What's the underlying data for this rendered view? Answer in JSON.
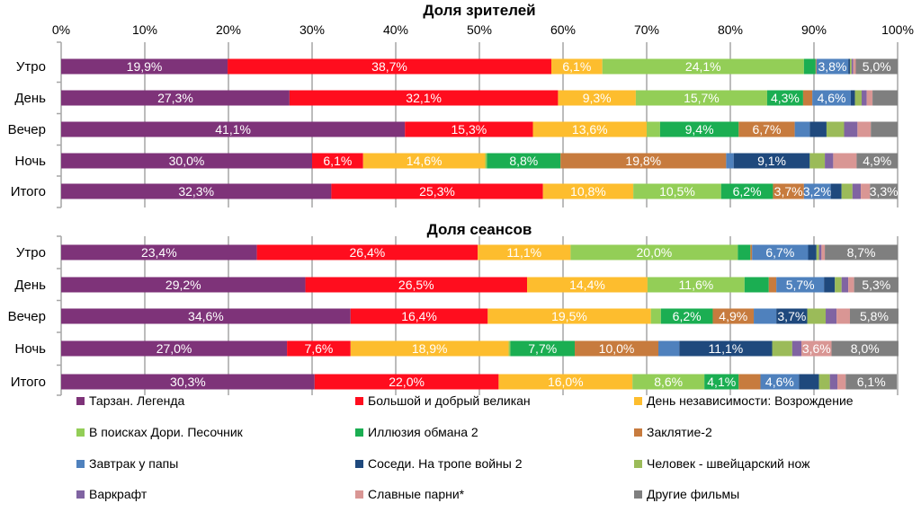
{
  "chart_data": [
    {
      "type": "bar",
      "orientation": "horizontal",
      "stacked": "percent",
      "title": "Доля зрителей",
      "categories": [
        "Утро",
        "День",
        "Вечер",
        "Ночь",
        "Итого"
      ],
      "xlim": [
        0,
        100
      ],
      "xticks": [
        "0%",
        "10%",
        "20%",
        "30%",
        "40%",
        "50%",
        "60%",
        "70%",
        "80%",
        "90%",
        "100%"
      ],
      "grid": true,
      "legend": "bottom",
      "series": [
        {
          "name": "Тарзан. Легенда",
          "values": [
            19.9,
            27.3,
            41.1,
            30.0,
            32.3
          ],
          "labeled": [
            true,
            true,
            true,
            true,
            true
          ]
        },
        {
          "name": "Большой и добрый великан",
          "values": [
            38.7,
            32.1,
            15.3,
            6.1,
            25.3
          ],
          "labeled": [
            true,
            true,
            true,
            true,
            true
          ]
        },
        {
          "name": "День независимости: Возрождение",
          "values": [
            6.1,
            9.3,
            13.6,
            14.6,
            10.8
          ],
          "labeled": [
            true,
            true,
            true,
            true,
            true
          ]
        },
        {
          "name": "В поисках Дори. Песочник",
          "values": [
            24.1,
            15.7,
            1.6,
            0.2,
            10.5
          ],
          "labeled": [
            true,
            true,
            false,
            false,
            true
          ]
        },
        {
          "name": "Иллюзия обмана 2",
          "values": [
            1.4,
            4.3,
            9.4,
            8.8,
            6.2
          ],
          "labeled": [
            false,
            true,
            true,
            true,
            true
          ]
        },
        {
          "name": "Заклятие-2",
          "values": [
            0.1,
            1.1,
            6.7,
            19.8,
            3.7
          ],
          "labeled": [
            false,
            false,
            true,
            true,
            true
          ]
        },
        {
          "name": "Завтрак у папы",
          "values": [
            3.8,
            4.6,
            1.8,
            0.9,
            3.2
          ],
          "labeled": [
            true,
            true,
            false,
            false,
            true
          ]
        },
        {
          "name": "Соседи. На тропе войны 2",
          "values": [
            0.2,
            0.5,
            2.0,
            9.1,
            1.3
          ],
          "labeled": [
            false,
            false,
            false,
            true,
            false
          ]
        },
        {
          "name": "Человек - швейцарский нож",
          "values": [
            0.2,
            0.8,
            2.1,
            1.8,
            1.3
          ],
          "labeled": [
            false,
            false,
            false,
            false,
            false
          ]
        },
        {
          "name": "Варкрафт",
          "values": [
            0.2,
            0.6,
            1.6,
            1.0,
            1.0
          ],
          "labeled": [
            false,
            false,
            false,
            false,
            false
          ]
        },
        {
          "name": "Славные парни*",
          "values": [
            0.3,
            0.7,
            1.6,
            2.8,
            1.1
          ],
          "labeled": [
            false,
            false,
            false,
            false,
            false
          ]
        },
        {
          "name": "Другие фильмы",
          "values": [
            5.0,
            3.0,
            3.2,
            4.9,
            3.3
          ],
          "labeled": [
            true,
            false,
            false,
            true,
            true
          ]
        }
      ]
    },
    {
      "type": "bar",
      "orientation": "horizontal",
      "stacked": "percent",
      "title": "Доля сеансов",
      "categories": [
        "Утро",
        "День",
        "Вечер",
        "Ночь",
        "Итого"
      ],
      "xlim": [
        0,
        100
      ],
      "grid": true,
      "series": [
        {
          "name": "Тарзан. Легенда",
          "values": [
            23.4,
            29.2,
            34.6,
            27.0,
            30.3
          ],
          "labeled": [
            true,
            true,
            true,
            true,
            true
          ]
        },
        {
          "name": "Большой и добрый великан",
          "values": [
            26.4,
            26.5,
            16.4,
            7.6,
            22.0
          ],
          "labeled": [
            true,
            true,
            true,
            true,
            true
          ]
        },
        {
          "name": "День независимости: Возрождение",
          "values": [
            11.1,
            14.4,
            19.5,
            18.9,
            16.0
          ],
          "labeled": [
            true,
            true,
            true,
            true,
            true
          ]
        },
        {
          "name": "В поисках Дори. Песочник",
          "values": [
            20.0,
            11.6,
            1.2,
            0.2,
            8.6
          ],
          "labeled": [
            true,
            true,
            false,
            false,
            true
          ]
        },
        {
          "name": "Иллюзия обмана 2",
          "values": [
            1.5,
            2.9,
            6.2,
            7.7,
            4.1
          ],
          "labeled": [
            false,
            false,
            true,
            true,
            true
          ]
        },
        {
          "name": "Заклятие-2",
          "values": [
            0.2,
            0.9,
            4.9,
            10.0,
            2.6
          ],
          "labeled": [
            false,
            false,
            true,
            true,
            false
          ]
        },
        {
          "name": "Завтрак у папы",
          "values": [
            6.7,
            5.7,
            2.7,
            2.5,
            4.6
          ],
          "labeled": [
            true,
            true,
            false,
            false,
            true
          ]
        },
        {
          "name": "Соседи. На тропе войны 2",
          "values": [
            1.0,
            1.3,
            3.7,
            11.1,
            2.4
          ],
          "labeled": [
            false,
            false,
            true,
            true,
            false
          ]
        },
        {
          "name": "Человек - швейцарский нож",
          "values": [
            0.3,
            0.8,
            2.2,
            2.4,
            1.3
          ],
          "labeled": [
            false,
            false,
            false,
            false,
            false
          ]
        },
        {
          "name": "Варкрафт",
          "values": [
            0.3,
            0.8,
            1.3,
            1.1,
            0.9
          ],
          "labeled": [
            false,
            false,
            false,
            false,
            false
          ]
        },
        {
          "name": "Славные парни*",
          "values": [
            0.4,
            0.7,
            1.6,
            3.6,
            1.0
          ],
          "labeled": [
            false,
            false,
            false,
            true,
            false
          ]
        },
        {
          "name": "Другие фильмы",
          "values": [
            8.7,
            5.3,
            5.8,
            8.0,
            6.1
          ],
          "labeled": [
            true,
            true,
            true,
            true,
            true
          ]
        }
      ]
    }
  ],
  "colors": [
    "#7E3379",
    "#FF0D1E",
    "#FDBD2E",
    "#93CE57",
    "#1BAE52",
    "#C77B3E",
    "#4F81BD",
    "#1F497D",
    "#9BBB59",
    "#8064A2",
    "#D99694",
    "#7F7F7F"
  ]
}
